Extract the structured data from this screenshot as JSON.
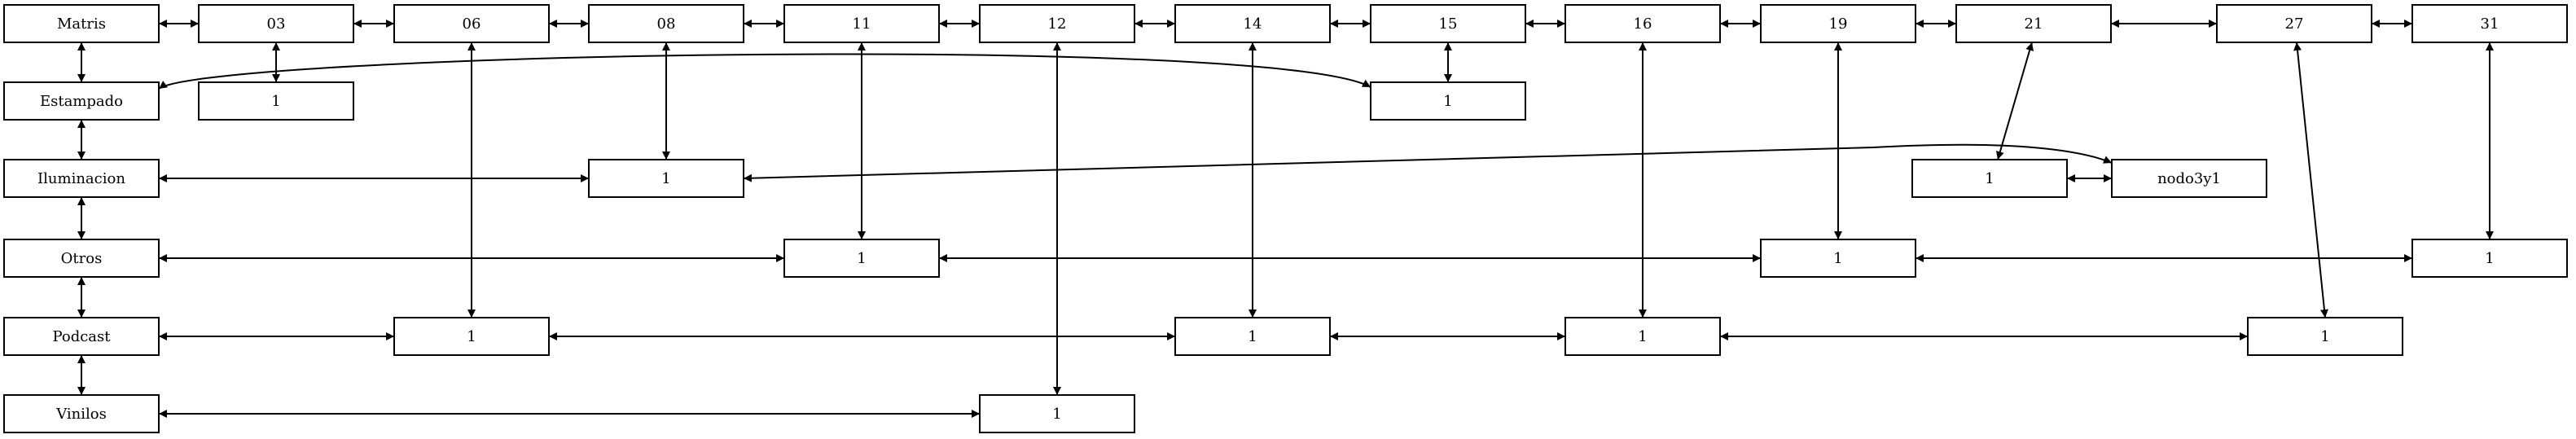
{
  "nodes": [
    {
      "id": "matris",
      "label": "Matris"
    },
    {
      "id": "n03",
      "label": "03"
    },
    {
      "id": "n06",
      "label": "06"
    },
    {
      "id": "n08",
      "label": "08"
    },
    {
      "id": "n11",
      "label": "11"
    },
    {
      "id": "n12",
      "label": "12"
    },
    {
      "id": "n14",
      "label": "14"
    },
    {
      "id": "n15",
      "label": "15"
    },
    {
      "id": "n16",
      "label": "16"
    },
    {
      "id": "n19",
      "label": "19"
    },
    {
      "id": "n21",
      "label": "21"
    },
    {
      "id": "n27",
      "label": "27"
    },
    {
      "id": "n31",
      "label": "31"
    },
    {
      "id": "estampado",
      "label": "Estampado"
    },
    {
      "id": "e03",
      "label": "1"
    },
    {
      "id": "e15",
      "label": "1"
    },
    {
      "id": "iluminacion",
      "label": "Iluminacion"
    },
    {
      "id": "i08",
      "label": "1"
    },
    {
      "id": "i21",
      "label": "1"
    },
    {
      "id": "nodo3y1",
      "label": "nodo3y1"
    },
    {
      "id": "otros",
      "label": "Otros"
    },
    {
      "id": "o11",
      "label": "1"
    },
    {
      "id": "o19",
      "label": "1"
    },
    {
      "id": "o31",
      "label": "1"
    },
    {
      "id": "podcast",
      "label": "Podcast"
    },
    {
      "id": "p06",
      "label": "1"
    },
    {
      "id": "p14",
      "label": "1"
    },
    {
      "id": "p16",
      "label": "1"
    },
    {
      "id": "p27",
      "label": "1"
    },
    {
      "id": "vinilos",
      "label": "Vinilos"
    },
    {
      "id": "v12",
      "label": "1"
    }
  ],
  "edges": [
    {
      "from": "matris",
      "to": "n03"
    },
    {
      "from": "n03",
      "to": "n06"
    },
    {
      "from": "n06",
      "to": "n08"
    },
    {
      "from": "n08",
      "to": "n11"
    },
    {
      "from": "n11",
      "to": "n12"
    },
    {
      "from": "n12",
      "to": "n14"
    },
    {
      "from": "n14",
      "to": "n15"
    },
    {
      "from": "n15",
      "to": "n16"
    },
    {
      "from": "n16",
      "to": "n19"
    },
    {
      "from": "n19",
      "to": "n21"
    },
    {
      "from": "n21",
      "to": "n27"
    },
    {
      "from": "n27",
      "to": "n31"
    },
    {
      "from": "matris",
      "to": "estampado"
    },
    {
      "from": "estampado",
      "to": "iluminacion"
    },
    {
      "from": "iluminacion",
      "to": "otros"
    },
    {
      "from": "otros",
      "to": "podcast"
    },
    {
      "from": "podcast",
      "to": "vinilos"
    },
    {
      "from": "n03",
      "to": "e03"
    },
    {
      "from": "n06",
      "to": "p06"
    },
    {
      "from": "n08",
      "to": "i08"
    },
    {
      "from": "n11",
      "to": "o11"
    },
    {
      "from": "n12",
      "to": "v12"
    },
    {
      "from": "n14",
      "to": "p14"
    },
    {
      "from": "n15",
      "to": "e15"
    },
    {
      "from": "n16",
      "to": "p16"
    },
    {
      "from": "n19",
      "to": "o19"
    },
    {
      "from": "n21",
      "to": "i21"
    },
    {
      "from": "n27",
      "to": "p27"
    },
    {
      "from": "n31",
      "to": "o31"
    },
    {
      "from": "estampado",
      "to": "e15"
    },
    {
      "from": "iluminacion",
      "to": "i08"
    },
    {
      "from": "i08",
      "to": "nodo3y1"
    },
    {
      "from": "i21",
      "to": "nodo3y1"
    },
    {
      "from": "otros",
      "to": "o11"
    },
    {
      "from": "o11",
      "to": "o19"
    },
    {
      "from": "o19",
      "to": "o31"
    },
    {
      "from": "podcast",
      "to": "p06"
    },
    {
      "from": "p06",
      "to": "p14"
    },
    {
      "from": "p14",
      "to": "p16"
    },
    {
      "from": "p16",
      "to": "p27"
    },
    {
      "from": "vinilos",
      "to": "v12"
    }
  ]
}
